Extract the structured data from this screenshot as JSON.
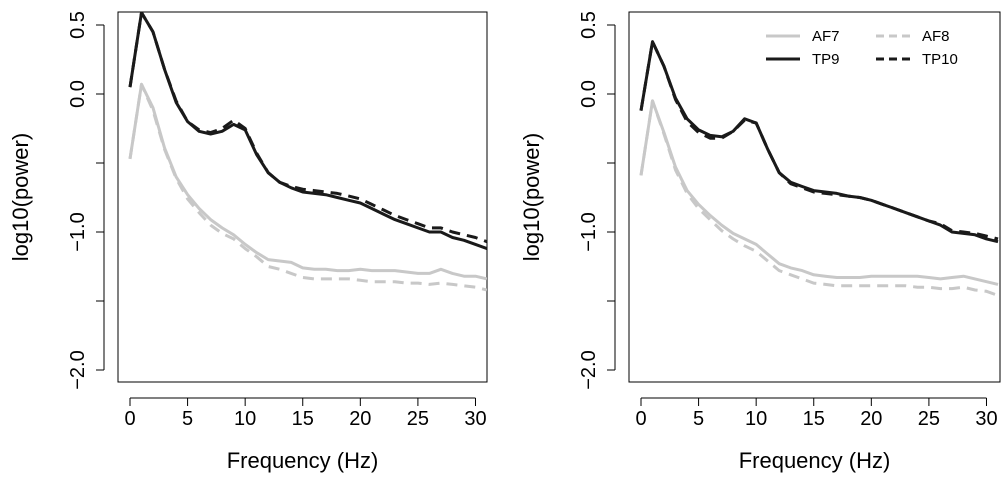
{
  "chart_data": [
    {
      "type": "line",
      "title": "",
      "xlabel": "Frequency (Hz)",
      "ylabel": "log10(power)",
      "xlim": [
        0,
        31
      ],
      "ylim": [
        -2.0,
        0.5
      ],
      "xticks": [
        0,
        5,
        10,
        15,
        20,
        25,
        30
      ],
      "xtick_labels": [
        "0",
        "5",
        "10",
        "15",
        "20",
        "25",
        "30"
      ],
      "yticks": [
        -2.0,
        -1.5,
        -1.0,
        -0.5,
        0.0,
        0.5
      ],
      "ytick_labels": [
        "−2.0",
        "",
        "−1.0",
        "",
        "0.0",
        "0.5"
      ],
      "grid": false,
      "legend": null,
      "series": [
        {
          "name": "AF7",
          "color": "#c8c8c8",
          "dash": "solid",
          "x": [
            0,
            1,
            2,
            3,
            4,
            5,
            6,
            7,
            8,
            9,
            10,
            11,
            12,
            13,
            14,
            15,
            16,
            17,
            18,
            19,
            20,
            21,
            22,
            23,
            24,
            25,
            26,
            27,
            28,
            29,
            30,
            31
          ],
          "y": [
            -0.47,
            0.07,
            -0.1,
            -0.39,
            -0.6,
            -0.73,
            -0.83,
            -0.91,
            -0.97,
            -1.02,
            -1.09,
            -1.15,
            -1.2,
            -1.21,
            -1.22,
            -1.26,
            -1.27,
            -1.27,
            -1.28,
            -1.28,
            -1.27,
            -1.28,
            -1.28,
            -1.28,
            -1.29,
            -1.3,
            -1.3,
            -1.27,
            -1.3,
            -1.32,
            -1.32,
            -1.34
          ]
        },
        {
          "name": "AF8",
          "color": "#c8c8c8",
          "dash": "dashed",
          "x": [
            0,
            1,
            2,
            3,
            4,
            5,
            6,
            7,
            8,
            9,
            10,
            11,
            12,
            13,
            14,
            15,
            16,
            17,
            18,
            19,
            20,
            21,
            22,
            23,
            24,
            25,
            26,
            27,
            28,
            29,
            30,
            31
          ],
          "y": [
            -0.47,
            0.07,
            -0.12,
            -0.4,
            -0.61,
            -0.76,
            -0.86,
            -0.95,
            -1.01,
            -1.05,
            -1.12,
            -1.18,
            -1.25,
            -1.27,
            -1.3,
            -1.33,
            -1.34,
            -1.34,
            -1.34,
            -1.34,
            -1.35,
            -1.36,
            -1.36,
            -1.36,
            -1.37,
            -1.37,
            -1.38,
            -1.37,
            -1.38,
            -1.39,
            -1.4,
            -1.42
          ]
        },
        {
          "name": "TP9",
          "color": "#1a1a1a",
          "dash": "solid",
          "x": [
            0,
            1,
            2,
            3,
            4,
            5,
            6,
            7,
            8,
            9,
            10,
            11,
            12,
            13,
            14,
            15,
            16,
            17,
            18,
            19,
            20,
            21,
            22,
            23,
            24,
            25,
            26,
            27,
            28,
            29,
            30,
            31
          ],
          "y": [
            0.05,
            0.59,
            0.45,
            0.18,
            -0.06,
            -0.2,
            -0.27,
            -0.29,
            -0.27,
            -0.22,
            -0.26,
            -0.44,
            -0.57,
            -0.64,
            -0.68,
            -0.71,
            -0.72,
            -0.73,
            -0.75,
            -0.77,
            -0.79,
            -0.83,
            -0.87,
            -0.91,
            -0.94,
            -0.97,
            -1.0,
            -1.0,
            -1.04,
            -1.06,
            -1.09,
            -1.12
          ]
        },
        {
          "name": "TP10",
          "color": "#1a1a1a",
          "dash": "dashed",
          "x": [
            0,
            1,
            2,
            3,
            4,
            5,
            6,
            7,
            8,
            9,
            10,
            11,
            12,
            13,
            14,
            15,
            16,
            17,
            18,
            19,
            20,
            21,
            22,
            23,
            24,
            25,
            26,
            27,
            28,
            29,
            30,
            31
          ],
          "y": [
            0.05,
            0.59,
            0.45,
            0.18,
            -0.05,
            -0.2,
            -0.26,
            -0.28,
            -0.25,
            -0.19,
            -0.25,
            -0.43,
            -0.57,
            -0.64,
            -0.67,
            -0.69,
            -0.7,
            -0.71,
            -0.72,
            -0.74,
            -0.76,
            -0.8,
            -0.84,
            -0.88,
            -0.91,
            -0.94,
            -0.97,
            -0.97,
            -1.0,
            -1.02,
            -1.04,
            -1.07
          ]
        }
      ]
    },
    {
      "type": "line",
      "title": "",
      "xlabel": "Frequency (Hz)",
      "ylabel": "log10(power)",
      "xlim": [
        0,
        31
      ],
      "ylim": [
        -2.0,
        0.5
      ],
      "xticks": [
        0,
        5,
        10,
        15,
        20,
        25,
        30
      ],
      "xtick_labels": [
        "0",
        "5",
        "10",
        "15",
        "20",
        "25",
        "30"
      ],
      "yticks": [
        -2.0,
        -1.5,
        -1.0,
        -0.5,
        0.0,
        0.5
      ],
      "ytick_labels": [
        "−2.0",
        "",
        "−1.0",
        "",
        "0.0",
        "0.5"
      ],
      "grid": false,
      "legend": "top-right",
      "legend_entries": [
        {
          "name": "AF7",
          "color": "#c8c8c8",
          "dash": "solid"
        },
        {
          "name": "AF8",
          "color": "#c8c8c8",
          "dash": "dashed"
        },
        {
          "name": "TP9",
          "color": "#1a1a1a",
          "dash": "solid"
        },
        {
          "name": "TP10",
          "color": "#1a1a1a",
          "dash": "dashed"
        }
      ],
      "series": [
        {
          "name": "AF7",
          "color": "#c8c8c8",
          "dash": "solid",
          "x": [
            0,
            1,
            2,
            3,
            4,
            5,
            6,
            7,
            8,
            9,
            10,
            11,
            12,
            13,
            14,
            15,
            16,
            17,
            18,
            19,
            20,
            21,
            22,
            23,
            24,
            25,
            26,
            27,
            28,
            29,
            30,
            31
          ],
          "y": [
            -0.59,
            -0.05,
            -0.28,
            -0.53,
            -0.7,
            -0.8,
            -0.88,
            -0.95,
            -1.01,
            -1.05,
            -1.09,
            -1.16,
            -1.23,
            -1.26,
            -1.28,
            -1.31,
            -1.32,
            -1.33,
            -1.33,
            -1.33,
            -1.32,
            -1.32,
            -1.32,
            -1.32,
            -1.32,
            -1.33,
            -1.34,
            -1.33,
            -1.32,
            -1.34,
            -1.36,
            -1.38
          ]
        },
        {
          "name": "AF8",
          "color": "#c8c8c8",
          "dash": "dashed",
          "x": [
            0,
            1,
            2,
            3,
            4,
            5,
            6,
            7,
            8,
            9,
            10,
            11,
            12,
            13,
            14,
            15,
            16,
            17,
            18,
            19,
            20,
            21,
            22,
            23,
            24,
            25,
            26,
            27,
            28,
            29,
            30,
            31
          ],
          "y": [
            -0.59,
            -0.05,
            -0.29,
            -0.55,
            -0.72,
            -0.83,
            -0.91,
            -0.99,
            -1.05,
            -1.1,
            -1.14,
            -1.21,
            -1.28,
            -1.31,
            -1.34,
            -1.37,
            -1.38,
            -1.39,
            -1.39,
            -1.39,
            -1.39,
            -1.39,
            -1.39,
            -1.39,
            -1.4,
            -1.4,
            -1.41,
            -1.41,
            -1.4,
            -1.42,
            -1.43,
            -1.46
          ]
        },
        {
          "name": "TP9",
          "color": "#1a1a1a",
          "dash": "solid",
          "x": [
            0,
            1,
            2,
            3,
            4,
            5,
            6,
            7,
            8,
            9,
            10,
            11,
            12,
            13,
            14,
            15,
            16,
            17,
            18,
            19,
            20,
            21,
            22,
            23,
            24,
            25,
            26,
            27,
            28,
            29,
            30,
            31
          ],
          "y": [
            -0.12,
            0.38,
            0.2,
            -0.03,
            -0.18,
            -0.26,
            -0.3,
            -0.31,
            -0.27,
            -0.18,
            -0.21,
            -0.4,
            -0.57,
            -0.64,
            -0.67,
            -0.7,
            -0.71,
            -0.72,
            -0.74,
            -0.75,
            -0.77,
            -0.8,
            -0.83,
            -0.86,
            -0.89,
            -0.92,
            -0.95,
            -1.0,
            -1.01,
            -1.02,
            -1.05,
            -1.07
          ]
        },
        {
          "name": "TP10",
          "color": "#1a1a1a",
          "dash": "dashed",
          "x": [
            0,
            1,
            2,
            3,
            4,
            5,
            6,
            7,
            8,
            9,
            10,
            11,
            12,
            13,
            14,
            15,
            16,
            17,
            18,
            19,
            20,
            21,
            22,
            23,
            24,
            25,
            26,
            27,
            28,
            29,
            30,
            31
          ],
          "y": [
            -0.12,
            0.38,
            0.2,
            -0.04,
            -0.2,
            -0.28,
            -0.32,
            -0.32,
            -0.27,
            -0.19,
            -0.21,
            -0.4,
            -0.57,
            -0.65,
            -0.68,
            -0.71,
            -0.72,
            -0.73,
            -0.74,
            -0.75,
            -0.77,
            -0.8,
            -0.83,
            -0.86,
            -0.89,
            -0.92,
            -0.94,
            -0.99,
            -1.0,
            -1.01,
            -1.03,
            -1.05
          ]
        }
      ]
    }
  ]
}
